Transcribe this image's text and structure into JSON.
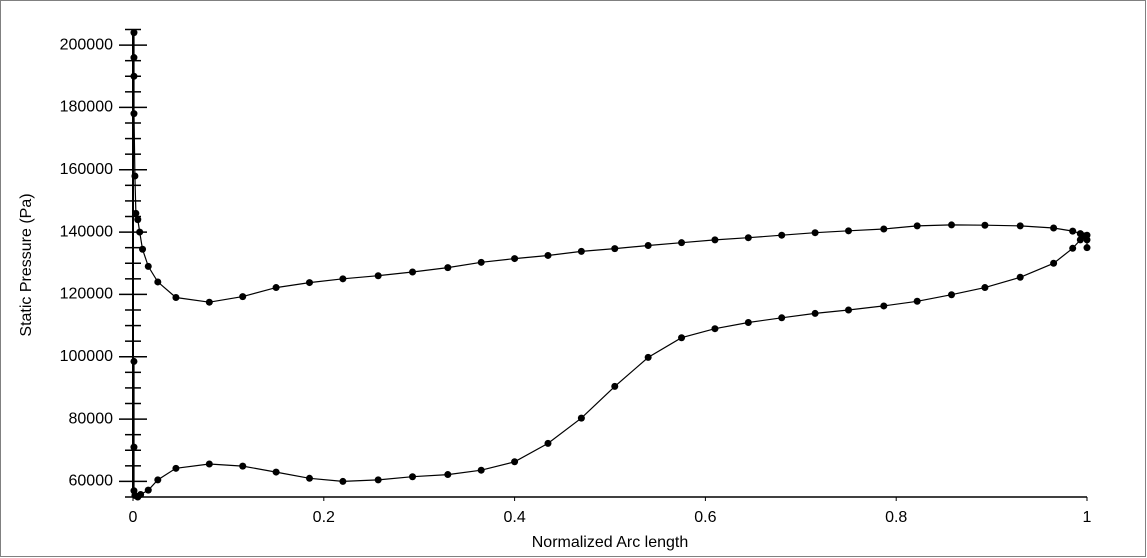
{
  "chart_data": {
    "type": "line",
    "xlabel": "Normalized Arc length",
    "ylabel": "Static Pressure (Pa)",
    "xlim": [
      0,
      1
    ],
    "ylim": [
      55000,
      205000
    ],
    "xticks": [
      0,
      0.2,
      0.4,
      0.6,
      0.8,
      1
    ],
    "yticks": [
      60000,
      80000,
      100000,
      120000,
      140000,
      160000,
      180000,
      200000
    ],
    "yminorticks": [
      55000,
      65000,
      70000,
      75000,
      85000,
      90000,
      95000,
      105000,
      110000,
      115000,
      125000,
      130000,
      135000,
      145000,
      150000,
      155000,
      165000,
      170000,
      175000,
      185000,
      190000,
      195000,
      205000
    ],
    "color": "#000000",
    "series": [
      {
        "color": "#000000",
        "x": [
          0.001,
          0.001,
          0.001,
          0.001,
          0.002,
          0.003,
          0.005,
          0.007,
          0.01,
          0.016,
          0.026,
          0.045,
          0.08,
          0.115,
          0.15,
          0.185,
          0.22,
          0.257,
          0.293,
          0.33,
          0.365,
          0.4,
          0.435,
          0.47,
          0.505,
          0.54,
          0.575,
          0.61,
          0.645,
          0.68,
          0.715,
          0.75,
          0.787,
          0.822,
          0.858,
          0.893,
          0.93,
          0.965,
          0.985,
          0.993,
          0.997,
          1,
          1
        ],
        "values": [
          204000,
          196000,
          190000,
          178000,
          158000,
          146000,
          144000,
          140000,
          134500,
          129000,
          124000,
          119000,
          117500,
          119300,
          122200,
          123800,
          125000,
          126000,
          127200,
          128600,
          130300,
          131500,
          132500,
          133800,
          134700,
          135700,
          136600,
          137500,
          138200,
          139000,
          139800,
          140400,
          141000,
          142000,
          142300,
          142200,
          142000,
          141300,
          140300,
          139500,
          138800,
          137500,
          135000
        ]
      },
      {
        "color": "#000000",
        "x": [
          0.001,
          0.001,
          0.001,
          0.002,
          0.005,
          0.008,
          0.016,
          0.026,
          0.045,
          0.08,
          0.115,
          0.15,
          0.185,
          0.22,
          0.257,
          0.293,
          0.33,
          0.365,
          0.4,
          0.435,
          0.47,
          0.505,
          0.54,
          0.575,
          0.61,
          0.645,
          0.68,
          0.715,
          0.75,
          0.787,
          0.822,
          0.858,
          0.893,
          0.93,
          0.965,
          0.985,
          0.993,
          1
        ],
        "values": [
          98500,
          71000,
          57000,
          55500,
          55000,
          55800,
          57200,
          60500,
          64200,
          65600,
          64900,
          63000,
          61000,
          60000,
          60500,
          61500,
          62200,
          63600,
          66300,
          72200,
          80300,
          90500,
          99800,
          106100,
          109000,
          111000,
          112500,
          113900,
          115000,
          116300,
          117800,
          119900,
          122200,
          125500,
          130000,
          134800,
          137500,
          139000
        ]
      }
    ]
  }
}
